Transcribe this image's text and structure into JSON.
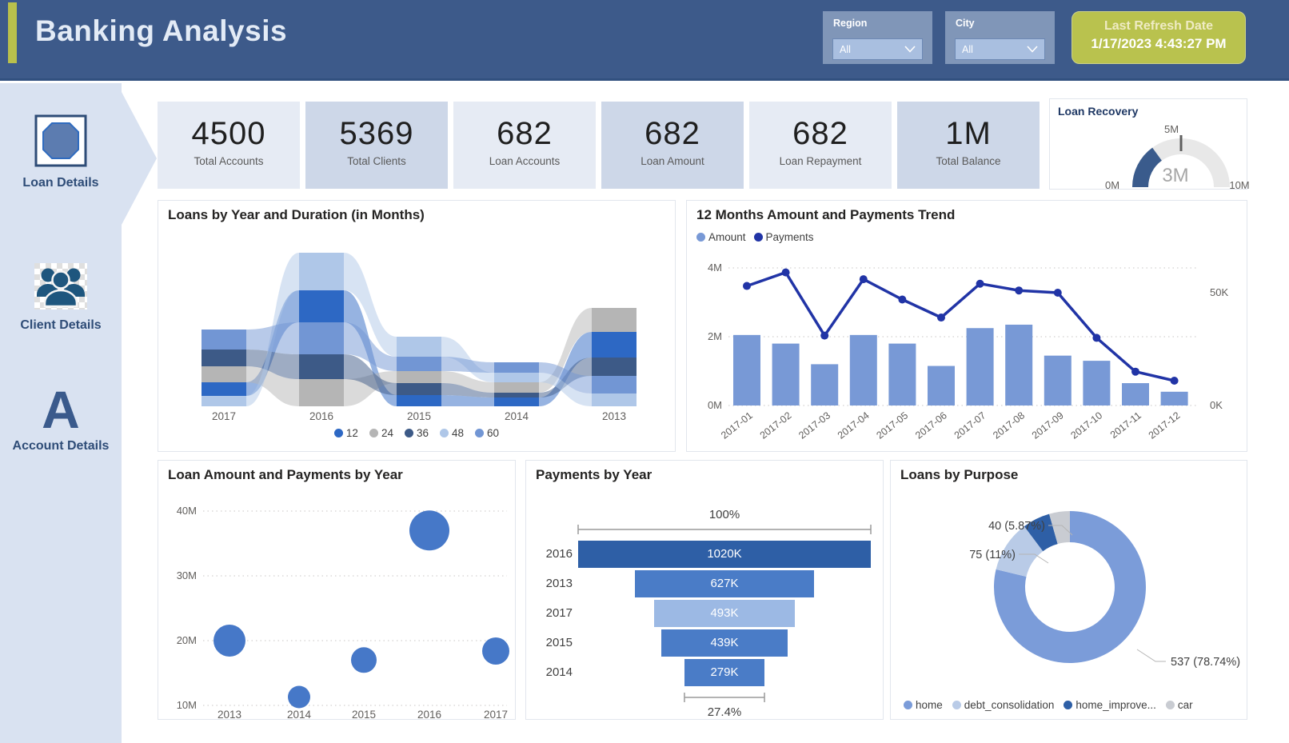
{
  "header": {
    "title": "Banking Analysis",
    "slicers": [
      {
        "label": "Region",
        "value": "All"
      },
      {
        "label": "City",
        "value": "All"
      }
    ],
    "refresh": {
      "label": "Last Refresh Date",
      "value": "1/17/2023 4:43:27 PM"
    }
  },
  "sidebar": {
    "items": [
      {
        "label": "Loan Details",
        "icon": "loan-icon",
        "active": true
      },
      {
        "label": "Client Details",
        "icon": "clients-icon",
        "active": false
      },
      {
        "label": "Account Details",
        "icon": "letter-a-icon",
        "active": false
      }
    ]
  },
  "kpis": [
    {
      "value": "4500",
      "label": "Total Accounts"
    },
    {
      "value": "5369",
      "label": "Total Clients"
    },
    {
      "value": "682",
      "label": "Loan Accounts"
    },
    {
      "value": "682",
      "label": "Loan Amount"
    },
    {
      "value": "682",
      "label": "Loan Repayment"
    },
    {
      "value": "1M",
      "label": "Total Balance"
    }
  ],
  "gauge": {
    "title": "Loan Recovery",
    "chart_data": {
      "type": "gauge",
      "min": 0,
      "max": 10,
      "value": 3,
      "target": 5,
      "unit": "M",
      "labels": {
        "min": "0M",
        "max": "10M",
        "target": "5M",
        "value": "3M"
      },
      "fill_color": "#3A5B8C",
      "track_color": "#E8E8E8"
    }
  },
  "ribbon_chart": {
    "title": "Loans by Year and Duration (in Months)",
    "chart_data": {
      "type": "area",
      "subtype": "ribbon",
      "note": "stack segment values are estimated relative loan counts, ordered top-to-bottom per year",
      "categories": [
        "2017",
        "2016",
        "2015",
        "2014",
        "2013"
      ],
      "stacks": {
        "2017": [
          [
            "60",
            25
          ],
          [
            "36",
            21
          ],
          [
            "24",
            20
          ],
          [
            "12",
            17
          ],
          [
            "48",
            13
          ]
        ],
        "2016": [
          [
            "48",
            47
          ],
          [
            "12",
            40
          ],
          [
            "60",
            40
          ],
          [
            "36",
            31
          ],
          [
            "24",
            34
          ]
        ],
        "2015": [
          [
            "48",
            25
          ],
          [
            "60",
            18
          ],
          [
            "24",
            15
          ],
          [
            "36",
            15
          ],
          [
            "12",
            14
          ]
        ],
        "2014": [
          [
            "60",
            13
          ],
          [
            "48",
            12
          ],
          [
            "24",
            13
          ],
          [
            "36",
            6
          ],
          [
            "12",
            11
          ]
        ],
        "2013": [
          [
            "24",
            30
          ],
          [
            "12",
            32
          ],
          [
            "36",
            23
          ],
          [
            "60",
            22
          ],
          [
            "48",
            16
          ]
        ]
      },
      "legend": [
        "12",
        "24",
        "36",
        "48",
        "60"
      ],
      "colors": {
        "12": "#2D68C4",
        "24": "#B5B5B5",
        "36": "#3D5A87",
        "48": "#AFC7E8",
        "60": "#7296D4"
      }
    }
  },
  "trend_chart": {
    "title": "12 Months Amount and Payments Trend",
    "chart_data": {
      "type": "bar",
      "subtype": "combo-bar-line",
      "categories": [
        "2017-01",
        "2017-02",
        "2017-03",
        "2017-04",
        "2017-05",
        "2017-06",
        "2017-07",
        "2017-08",
        "2017-09",
        "2017-10",
        "2017-11",
        "2017-12"
      ],
      "series": [
        {
          "name": "Amount",
          "type": "bar",
          "axis": "left",
          "unit": "M",
          "color": "#7899D6",
          "values": [
            2.05,
            1.8,
            1.2,
            2.05,
            1.8,
            1.15,
            2.25,
            2.35,
            1.45,
            1.3,
            0.65,
            0.4
          ]
        },
        {
          "name": "Payments",
          "type": "line",
          "axis": "right",
          "unit": "K",
          "color": "#2134A6",
          "values": [
            53,
            59,
            31,
            56,
            47,
            39,
            54,
            51,
            50,
            30,
            15,
            11
          ]
        }
      ],
      "left_axis": {
        "ticks": [
          "4M",
          "2M",
          "0M"
        ],
        "max": 4
      },
      "right_axis": {
        "ticks": [
          "50K",
          "0K"
        ],
        "max_at_top_gridline": 61
      },
      "grid": "dotted"
    }
  },
  "bubble_chart": {
    "title": "Loan Amount and Payments by Year",
    "chart_data": {
      "type": "scatter",
      "x": [
        "2013",
        "2014",
        "2015",
        "2016",
        "2017"
      ],
      "y_unit": "M",
      "ylim": [
        10,
        40
      ],
      "yticks": [
        "40M",
        "30M",
        "20M",
        "10M"
      ],
      "points": [
        {
          "x": "2013",
          "y": 20,
          "r": 20
        },
        {
          "x": "2014",
          "y": 11.3,
          "r": 14
        },
        {
          "x": "2015",
          "y": 17,
          "r": 16
        },
        {
          "x": "2016",
          "y": 37,
          "r": 25
        },
        {
          "x": "2017",
          "y": 18.4,
          "r": 17
        }
      ],
      "color": "#4678C8",
      "grid": "dotted"
    }
  },
  "funnel_chart": {
    "title": "Payments by Year",
    "chart_data": {
      "type": "bar",
      "subtype": "funnel",
      "categories": [
        "2016",
        "2013",
        "2017",
        "2015",
        "2014"
      ],
      "values_k": [
        1020,
        627,
        493,
        439,
        279
      ],
      "value_labels": [
        "1020K",
        "627K",
        "493K",
        "439K",
        "279K"
      ],
      "top_percent": "100%",
      "bottom_percent": "27.4%",
      "colors": [
        "#2E5FA6",
        "#4A7CC7",
        "#9CB9E4",
        "#4A7CC7",
        "#4A7CC7"
      ]
    }
  },
  "donut_chart": {
    "title": "Loans by Purpose",
    "chart_data": {
      "type": "pie",
      "subtype": "donut",
      "labels": [
        "home",
        "debt_consolidation",
        "home_improvement",
        "car"
      ],
      "values": [
        537,
        75,
        40,
        30
      ],
      "percents": [
        78.74,
        11,
        5.87,
        4.39
      ],
      "callouts": [
        {
          "slice": "home_improvement",
          "text": "40 (5.87%)"
        },
        {
          "slice": "debt_consolidation",
          "text": "75 (11%)"
        },
        {
          "slice": "home",
          "text": "537 (78.74%)"
        }
      ],
      "legend": [
        "home",
        "debt_consolidation",
        "home_improve...",
        "car"
      ],
      "colors": [
        "#7B9CD9",
        "#B9CBE7",
        "#2E5FA6",
        "#C9CCD2"
      ],
      "legend_position": "bottom"
    }
  },
  "theme": {
    "header_bg": "#3D5A8A",
    "accent": "#B9C04C",
    "sidebar_bg": "#D9E2F1",
    "nav_text": "#2E4C77",
    "kpi_light": "#E6EBF4",
    "kpi_dark": "#CDD7E8",
    "axis_text": "#605E5C",
    "gridline": "#C8C6C4"
  }
}
